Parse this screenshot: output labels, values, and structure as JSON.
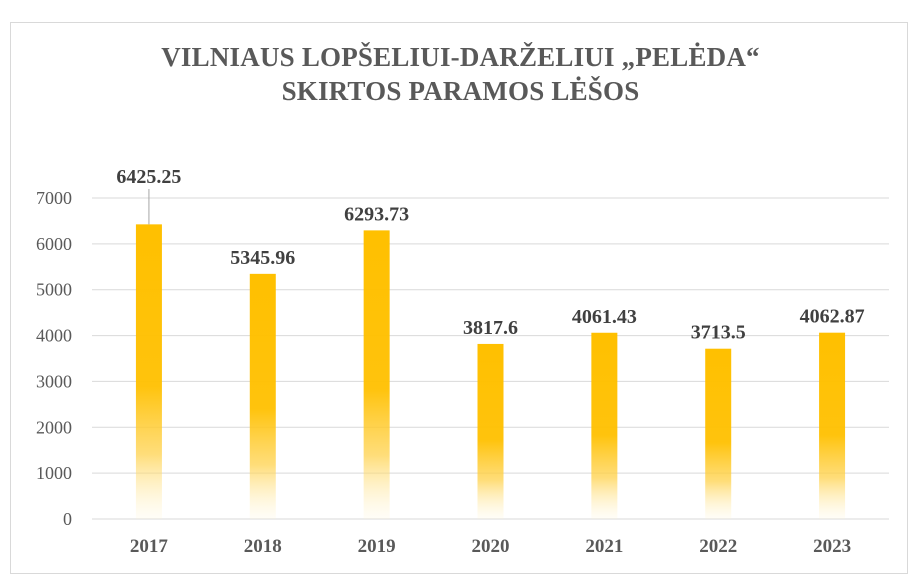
{
  "chart_data": {
    "type": "bar",
    "title_lines": [
      "VILNIAUS LOPŠELIUI-DARŽELIUI „PELĖDA“",
      "SKIRTOS PARAMOS LĖŠOS"
    ],
    "categories": [
      "2017",
      "2018",
      "2019",
      "2020",
      "2021",
      "2022",
      "2023"
    ],
    "values": [
      6425.25,
      5345.96,
      6293.73,
      3817.6,
      4061.43,
      3713.5,
      4062.87
    ],
    "value_labels": [
      "6425.25",
      "5345.96",
      "6293.73",
      "3817.6",
      "4061.43",
      "3713.5",
      "4062.87"
    ],
    "y_ticks": [
      0,
      1000,
      2000,
      3000,
      4000,
      5000,
      6000,
      7000
    ],
    "ylim": [
      0,
      7000
    ],
    "grid": true,
    "legend": "none",
    "bar_color": "#ffc000",
    "grid_color": "#d9d9d9",
    "text_color": "#595959"
  }
}
